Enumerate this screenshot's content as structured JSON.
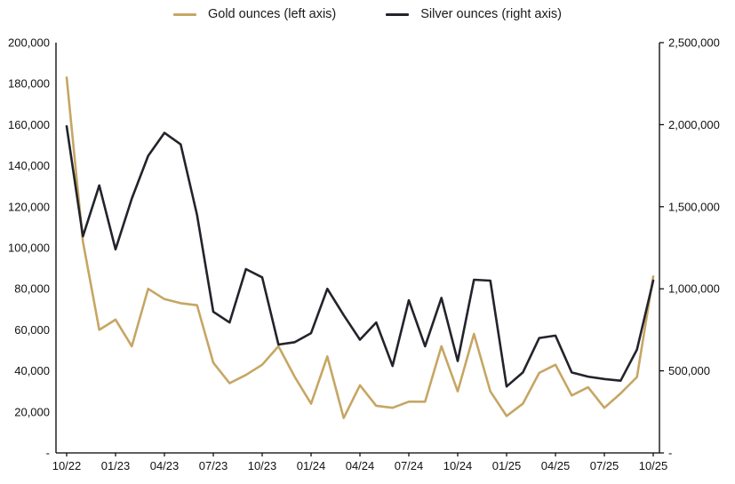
{
  "chart_data": {
    "type": "line",
    "title": "",
    "grid": false,
    "legend_position": "top",
    "legend": [
      "Gold ounces (left axis)",
      "Silver ounces (right axis)"
    ],
    "months": [
      "10/22",
      "11/22",
      "12/22",
      "01/23",
      "02/23",
      "03/23",
      "04/23",
      "05/23",
      "06/23",
      "07/23",
      "08/23",
      "09/23",
      "10/23",
      "11/23",
      "12/23",
      "01/24",
      "02/24",
      "03/24",
      "04/24",
      "05/24",
      "06/24",
      "07/24",
      "08/24",
      "09/24",
      "10/24",
      "11/24",
      "12/24",
      "01/25",
      "02/25",
      "03/25",
      "04/25",
      "05/25",
      "06/25",
      "07/25",
      "08/25",
      "09/25",
      "10/25"
    ],
    "x_tick_labels": [
      "10/22",
      "01/23",
      "04/23",
      "07/23",
      "10/23",
      "01/24",
      "04/24",
      "07/24",
      "10/24",
      "01/25",
      "04/25",
      "07/25",
      "10/25"
    ],
    "series": [
      {
        "name": "Gold ounces",
        "legend_label": "Gold ounces (left axis)",
        "axis": "left",
        "color": "#C6A664",
        "values": [
          183000,
          103000,
          60000,
          65000,
          52000,
          80000,
          75000,
          73000,
          72000,
          44000,
          34000,
          38000,
          43000,
          52000,
          37000,
          24000,
          47000,
          17000,
          33000,
          23000,
          22000,
          25000,
          25000,
          52000,
          30000,
          58000,
          30000,
          18000,
          24000,
          39000,
          43000,
          28000,
          32000,
          22000,
          29000,
          37000,
          86000
        ]
      },
      {
        "name": "Silver ounces",
        "legend_label": "Silver ounces (right axis)",
        "axis": "right",
        "color": "#23232B",
        "values": [
          1990000,
          1320000,
          1630000,
          1240000,
          1550000,
          1810000,
          1950000,
          1880000,
          1450000,
          860000,
          795000,
          1120000,
          1070000,
          660000,
          675000,
          730000,
          1000000,
          840000,
          690000,
          795000,
          530000,
          930000,
          650000,
          945000,
          560000,
          1055000,
          1050000,
          405000,
          490000,
          700000,
          715000,
          490000,
          465000,
          450000,
          440000,
          630000,
          1050000
        ]
      }
    ],
    "left_axis": {
      "min": 0,
      "max": 200000,
      "tick_step": 20000,
      "tick_labels": [
        "-",
        "20,000",
        "40,000",
        "60,000",
        "80,000",
        "100,000",
        "120,000",
        "140,000",
        "160,000",
        "180,000",
        "200,000"
      ]
    },
    "right_axis": {
      "min": 0,
      "max": 2500000,
      "tick_step": 500000,
      "tick_labels": [
        "-",
        "500,000",
        "1,000,000",
        "1,500,000",
        "2,000,000",
        "2,500,000"
      ]
    }
  }
}
